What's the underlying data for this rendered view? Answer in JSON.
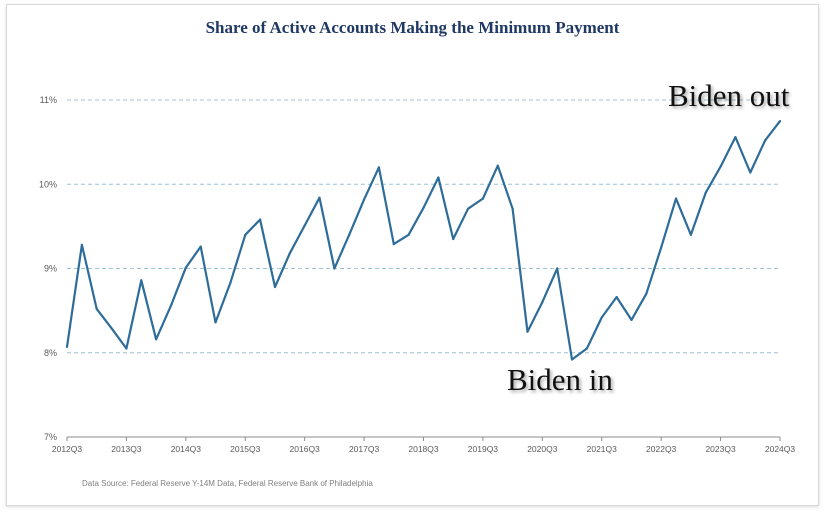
{
  "chart_data": {
    "type": "line",
    "title": "Share of Active Accounts Making the Minimum Payment",
    "xlabel": "",
    "ylabel": "",
    "ylim": [
      7,
      11
    ],
    "yticks": [
      7,
      8,
      9,
      10,
      11
    ],
    "ytick_labels": [
      "7%",
      "8%",
      "9%",
      "10%",
      "11%"
    ],
    "xtick_labels": [
      "2012Q3",
      "2013Q3",
      "2014Q3",
      "2015Q3",
      "2016Q3",
      "2017Q3",
      "2018Q3",
      "2019Q3",
      "2020Q3",
      "2021Q3",
      "2022Q3",
      "2023Q3",
      "2024Q3"
    ],
    "grid": true,
    "line_color": "#2e6c9a",
    "x": [
      "2012Q3",
      "2012Q4",
      "2013Q1",
      "2013Q2",
      "2013Q3",
      "2013Q4",
      "2014Q1",
      "2014Q2",
      "2014Q3",
      "2014Q4",
      "2015Q1",
      "2015Q2",
      "2015Q3",
      "2015Q4",
      "2016Q1",
      "2016Q2",
      "2016Q3",
      "2016Q4",
      "2017Q1",
      "2017Q2",
      "2017Q3",
      "2017Q4",
      "2018Q1",
      "2018Q2",
      "2018Q3",
      "2018Q4",
      "2019Q1",
      "2019Q2",
      "2019Q3",
      "2019Q4",
      "2020Q1",
      "2020Q2",
      "2020Q3",
      "2020Q4",
      "2021Q1",
      "2021Q2",
      "2021Q3",
      "2021Q4",
      "2022Q1",
      "2022Q2",
      "2022Q3",
      "2022Q4",
      "2023Q1",
      "2023Q2",
      "2023Q3",
      "2023Q4",
      "2024Q1",
      "2024Q2",
      "2024Q3"
    ],
    "values": [
      8.07,
      9.28,
      8.52,
      8.29,
      8.05,
      8.86,
      8.16,
      8.56,
      9.01,
      9.26,
      8.36,
      8.83,
      9.4,
      9.58,
      8.78,
      9.18,
      9.51,
      9.84,
      9.0,
      9.4,
      9.82,
      10.2,
      9.29,
      9.4,
      9.72,
      10.08,
      9.35,
      9.71,
      9.83,
      10.22,
      9.71,
      8.25,
      8.6,
      9.0,
      7.92,
      8.05,
      8.42,
      8.66,
      8.39,
      8.7,
      9.25,
      9.83,
      9.4,
      9.9,
      10.21,
      10.56,
      10.14,
      10.52,
      10.75
    ]
  },
  "annotations": {
    "biden_out": "Biden out",
    "biden_in": "Biden in"
  },
  "source": "Data Source: Federal Reserve Y-14M Data, Federal Reserve Bank of Philadelphia"
}
